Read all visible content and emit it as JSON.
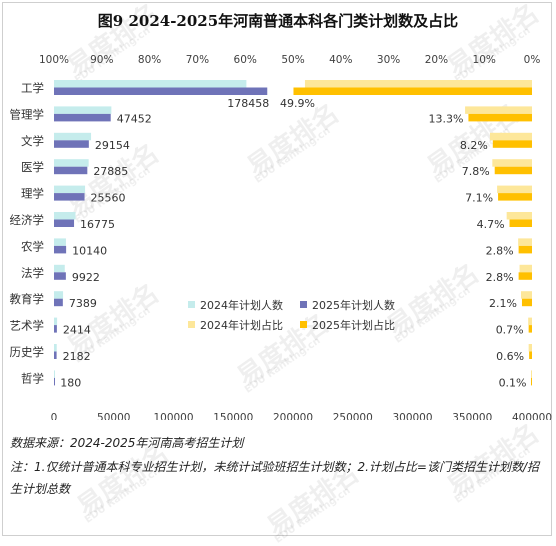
{
  "title": "图9  2024-2025年河南普通本科各门类计划数及占比",
  "watermark": {
    "cn": "易度排名",
    "en": "EDU Ranking.cn"
  },
  "source_note": "数据来源：2024-2025年河南高考招生计划",
  "footnote": "注：1.仅统计普通本科专业招生计划，未统计试验班招生计划数；2.计划占比=该门类招生计划数/招生计划总数",
  "colors": {
    "count_2024": "#c5ecec",
    "count_2025": "#6f73b8",
    "share_2024": "#fde79a",
    "share_2025": "#ffc000",
    "axis_text": "#404040"
  },
  "chart_data": {
    "type": "bar",
    "orientation": "horizontal",
    "categories": [
      "工学",
      "管理学",
      "文学",
      "医学",
      "理学",
      "经济学",
      "农学",
      "法学",
      "教育学",
      "艺术学",
      "历史学",
      "哲学"
    ],
    "count_axis": {
      "xlim": [
        0,
        400000
      ],
      "ticks": [
        0,
        50000,
        100000,
        150000,
        200000,
        250000,
        300000,
        350000,
        400000
      ]
    },
    "share_axis": {
      "direction": "reversed",
      "xlim": [
        0,
        100
      ],
      "tick_labels": [
        "100%",
        "90%",
        "80%",
        "70%",
        "60%",
        "50%",
        "40%",
        "30%",
        "20%",
        "10%",
        "0%"
      ]
    },
    "series": [
      {
        "name": "2024年计划人数",
        "axis": "count",
        "values": [
          161000,
          48000,
          31000,
          29000,
          26000,
          18000,
          10000,
          9000,
          7600,
          2600,
          2300,
          190
        ]
      },
      {
        "name": "2025年计划人数",
        "axis": "count",
        "values": [
          178458,
          47452,
          29154,
          27885,
          25560,
          16775,
          10140,
          9922,
          7389,
          2414,
          2182,
          180
        ],
        "labels": [
          "178458",
          "47452",
          "29154",
          "27885",
          "25560",
          "16775",
          "10140",
          "9922",
          "7389",
          "2414",
          "2182",
          "180"
        ]
      },
      {
        "name": "2024年计划占比",
        "axis": "share",
        "values": [
          47.5,
          14.0,
          8.8,
          8.3,
          7.3,
          5.3,
          2.9,
          2.6,
          2.3,
          0.8,
          0.7,
          0.1
        ]
      },
      {
        "name": "2025年计划占比",
        "axis": "share",
        "values": [
          49.9,
          13.3,
          8.2,
          7.8,
          7.1,
          4.7,
          2.8,
          2.8,
          2.1,
          0.7,
          0.6,
          0.1
        ],
        "labels": [
          "49.9%",
          "13.3%",
          "8.2%",
          "7.8%",
          "7.1%",
          "4.7%",
          "2.8%",
          "2.8%",
          "2.1%",
          "0.7%",
          "0.6%",
          "0.1%"
        ]
      }
    ],
    "legend": {
      "placement": "center-right",
      "entries": [
        "2024年计划人数",
        "2025年计划人数",
        "2024年计划占比",
        "2025年计划占比"
      ]
    },
    "grid": false
  }
}
